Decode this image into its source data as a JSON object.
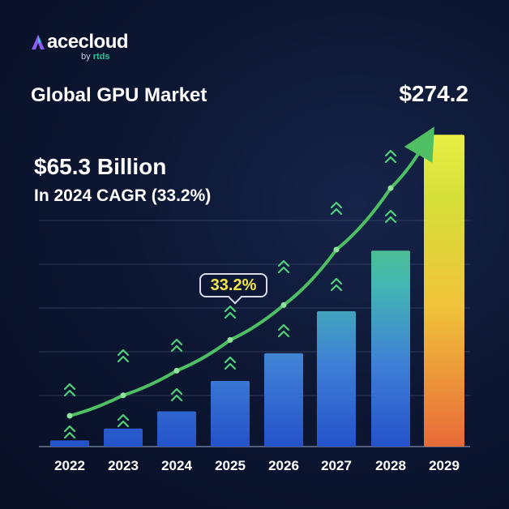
{
  "brand": {
    "name": "acecloud",
    "byline": "by",
    "parent": "rtds"
  },
  "chart_data": {
    "type": "bar",
    "title": "Global GPU Market",
    "headline_value": "$65.3 Billion",
    "headline_sub": "In 2024 CAGR (33.2%)",
    "end_value_label": "$274.2",
    "growth_callout": "33.2%",
    "categories": [
      "2022",
      "2023",
      "2024",
      "2025",
      "2026",
      "2027",
      "2028",
      "2029"
    ],
    "values": [
      3,
      8.8,
      17.2,
      32,
      45.5,
      66,
      95.5,
      152
    ],
    "trend": [
      15,
      25,
      37,
      52,
      69,
      96,
      126,
      156
    ],
    "ylim": [
      0,
      160
    ],
    "grid": true,
    "colors": {
      "bar_gradient": [
        "#2452c9",
        "#3f7fd6",
        "#43b8b0",
        "#5bc468",
        "#c9dc3a",
        "#f0c93a",
        "#f07a3a"
      ],
      "trend_line": "#4fbf63",
      "chevron": "#4fd17a"
    }
  }
}
